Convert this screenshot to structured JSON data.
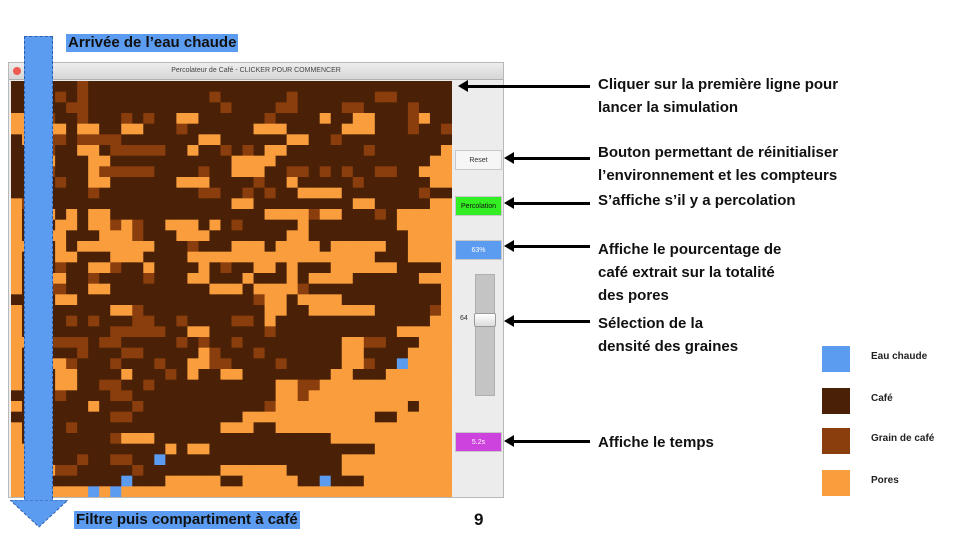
{
  "window": {
    "title": "Percolateur de Café - CLICKER POUR COMMENCER",
    "buttons": {
      "reset": "Reset",
      "percolation": "Percolation",
      "percentage": "63%",
      "time": "5.2s"
    },
    "slider": {
      "value": "64"
    }
  },
  "colors": {
    "eau_chaude": "#5b9bf0",
    "cafe": "#4a2106",
    "grain": "#8b3e0d",
    "pores": "#f99d3d",
    "percolation_btn": "#33ee22",
    "time_btn": "#cc44dd",
    "pct_btn": "#5b9bf0"
  },
  "grid": {
    "rows": [
      "CCCCCCGCCCCCCCCCCCCCCCCCCCCCCCCCCCCCCCCC",
      "CCCCGCGCCCCCCCCCCCGCCCCCCGCCCCCCCGGCCCCC",
      "CCCCCGGCCCCCCCCCCCCGCCCCGGCCCCGGCCCCGCCC",
      "PPPGCCGCCCGCGCCPPCCCCCCGCCCCPCCPPCCCGPCC",
      "PPPPPCPPCCPPCCCGCCCCCCPPPCCCCCPPPCCCGCCG",
      "CPPGGCGGGGCCCCCCCPPCCCCCCPPCCGCCCCCCCCCC",
      "CCCGCCPPCGGGGGCCPCCGCGCPPCCCCCCCGCCCCCCP",
      "CCCPCCCPPCCCCCCCCCCCPPPPCCCCCCCCCCCCCCPP",
      "CCCGCCCPGGGGGCCCCGCCPPPCCGGCGCGCCGGCCPPP",
      "CCCCGCCPPCCCCCCPPPCCCCGCCPCCCCCGCCCCCCPP",
      "CCCCCCCGCCCCCCCCCGGCCGCGCCPPPPCCCCCCCGCC",
      "PGGCCCCCCCCCCCCCCCCCPPCCCCCCCCCPPCCCCCPP",
      "PCCPCPCPPCCCCCCCCCCCCCCPPPPGPPCCCGCPPPPP",
      "PCCCPPCPPGPGCCPPPCPCGCCCCCPCCCCCCCCPPPPP",
      "PCPPPCCCPPPGCCCPPPCCCCCCCPPCCCCCCCCCPPPP",
      "PPPCPCPPPPPPPCCCGCCCPPPCPPPPCPPPPPCCPPPP",
      "PCCCPPCCCPPPCCCCPPPPPPPPPPPPPPPPPCCCPPPP",
      "PCCCGCCPPGCCPCCCCPCGCCPPCPCCCPPPPPPCCCCP",
      "PCCPPCCGCCCCGCCCPPCCCPCCCPCPPPPCCCCCCPPP",
      "PCCGGCCPPCCCCCCCCCPPPCPPPPGCCCCCCCCCCCCP",
      "CCCCPPCCCCCCCCCCCCCCCCGPPCPPPPCCCCCCCCCP",
      "PCCCCCCCCPPGCCCCCCCCCCCPPCCPPPPPPCCCCCGP",
      "PCCCCGCGCCCGGCCGCCCCGGCPCCCCCCCCCCCCCCPP",
      "PCCCCCCCCGGGGGCCPPCCCCCGCCCCCCCCCCCPPPPP",
      "PPPGGGGCGGCCCCCGCGCCGCCCCCCCCCPPGGCCCPPP",
      "PCCCCCGCCCGGCCCCCPGCCCGCCCCCCCPPCCCCPPPP",
      "PCCPPGCCCGCCCGCCPPGGCCCCGCCCCCPPGCCWPPPP",
      "PCCCPPCCCCPCCCGCPCCPPCCCCCCCCPPCCCPPPPPP",
      "PCCCPPCCGGCCGCCCCCCCCCCCPPGGPPPPPPPPPPPP",
      "CCCCGCCCCGGCCCCCCCCCCCCCPPGPPPPPPPPPPPPP",
      "PCCCCCCPCCCGCCCCCCCCCCCGPPPPPPPPPPPPCPPP",
      "CCCCCCCCCGGCCCCCCCCCCPPPPPPPPPPPPCCPPPPP",
      "PCCCCGCCCCCCCCCCCCCPPPCCPPPPPPPPPPPPPPPP",
      "PCCCCCCCCGPPPCCCCCCCCCCCCCCCCPPPPPPPPPPP",
      "PPCCCCCCCCCCCCPCPPCCCCCCCCCCCCCCCPPPPPPP",
      "PPCCCCGCCGGCCWCCCCCCCCCCCCCCCCPPPPPPPPPP",
      "PPPPGGCCCCCGCCCCCCCPPPPPPCCCCCPPPPPPPPPP",
      "PPCCCCCCCCWCCCPPPPPCCPPPPPCCWCCCPPPPPPPP",
      "PPPPPPPWPWPPPPPPPPPPPPPPPPPPPPPPPPPPPPPP"
    ]
  },
  "labels": {
    "arrivee": "Arrivée de l’eau chaude",
    "filtre": "Filtre puis compartiment à café",
    "page_number": "9"
  },
  "annotations": {
    "a1_l1": "Cliquer sur la première ligne pour",
    "a1_l2": "lancer la simulation",
    "a2_l1": "Bouton permettant de réinitialiser",
    "a2_l2": "l’environnement et les compteurs",
    "a3": "S’affiche s’il y a percolation",
    "a4_l1": "Affiche le pourcentage de",
    "a4_l2": "café extrait sur la totalité",
    "a4_l3": "des pores",
    "a5_l1": "Sélection de la",
    "a5_l2": "densité des graines",
    "a6": "Affiche le temps"
  },
  "legend": {
    "eau_chaude": "Eau chaude",
    "cafe": "Café",
    "grain": "Grain de café",
    "pores": "Pores"
  }
}
